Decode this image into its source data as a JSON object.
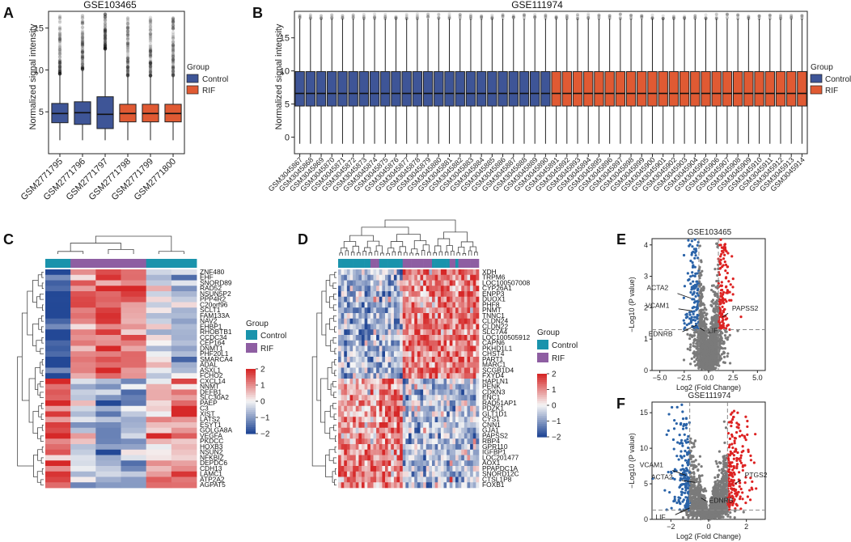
{
  "chart_data": [
    {
      "panel": "A",
      "type": "box",
      "title": "GSE103465",
      "ylabel": "Normalized signal intensity",
      "ylim": [
        0,
        17
      ],
      "yticks": [
        5,
        10,
        15
      ],
      "legend": {
        "title": "Group",
        "items": [
          {
            "name": "Control",
            "color": "#3e5597"
          },
          {
            "name": "RIF",
            "color": "#e05a33"
          }
        ]
      },
      "categories": [
        "GSM2771795",
        "GSM2771796",
        "GSM2771797",
        "GSM2771798",
        "GSM2771799",
        "GSM2771800"
      ],
      "groups": [
        "Control",
        "Control",
        "Control",
        "RIF",
        "RIF",
        "RIF"
      ],
      "boxes": [
        {
          "min": 1.6,
          "q1": 3.7,
          "median": 4.8,
          "q3": 6.0,
          "max": 9.5,
          "outlier_max": 16.5
        },
        {
          "min": 1.6,
          "q1": 3.5,
          "median": 4.9,
          "q3": 6.2,
          "max": 10.0,
          "outlier_max": 16.6
        },
        {
          "min": 1.6,
          "q1": 3.0,
          "median": 4.7,
          "q3": 6.8,
          "max": 12.5,
          "outlier_max": 16.7
        },
        {
          "min": 1.6,
          "q1": 3.8,
          "median": 4.8,
          "q3": 5.9,
          "max": 9.3,
          "outlier_max": 16.3
        },
        {
          "min": 1.6,
          "q1": 3.8,
          "median": 4.8,
          "q3": 5.9,
          "max": 9.3,
          "outlier_max": 16.3
        },
        {
          "min": 1.6,
          "q1": 3.8,
          "median": 4.8,
          "q3": 5.9,
          "max": 9.3,
          "outlier_max": 16.3
        }
      ]
    },
    {
      "panel": "B",
      "type": "box",
      "title": "GSE111974",
      "ylabel": "Normalized signal intensity",
      "ylim": [
        -2.5,
        19
      ],
      "yticks": [
        0,
        5,
        10,
        15
      ],
      "legend": {
        "title": "Group",
        "items": [
          {
            "name": "Control",
            "color": "#3e5597"
          },
          {
            "name": "RIF",
            "color": "#e05a33"
          }
        ]
      },
      "categories": [
        "GSM3045867",
        "GSM3045868",
        "GSM3045869",
        "GSM3045870",
        "GSM3045871",
        "GSM3045872",
        "GSM3045873",
        "GSM3045874",
        "GSM3045875",
        "GSM3045876",
        "GSM3045877",
        "GSM3045878",
        "GSM3045879",
        "GSM3045880",
        "GSM3045881",
        "GSM3045882",
        "GSM3045883",
        "GSM3045884",
        "GSM3045885",
        "GSM3045886",
        "GSM3045887",
        "GSM3045888",
        "GSM3045889",
        "GSM3045890",
        "GSM3045891",
        "GSM3045892",
        "GSM3045893",
        "GSM3045894",
        "GSM3045895",
        "GSM3045896",
        "GSM3045897",
        "GSM3045898",
        "GSM3045899",
        "GSM3045900",
        "GSM3045901",
        "GSM3045902",
        "GSM3045903",
        "GSM3045904",
        "GSM3045905",
        "GSM3045906",
        "GSM3045907",
        "GSM3045908",
        "GSM3045909",
        "GSM3045910",
        "GSM3045911",
        "GSM3045912",
        "GSM3045913",
        "GSM3045914"
      ],
      "control_count": 24,
      "box": {
        "min": -1.0,
        "q1": 4.7,
        "median": 6.6,
        "q3": 9.9,
        "max": 17.9,
        "outlier_max": 18.6
      }
    },
    {
      "panel": "C",
      "type": "heatmap",
      "legend": {
        "title": "Group",
        "items": [
          {
            "name": "Control",
            "color": "#1a93ac"
          },
          {
            "name": "RIF",
            "color": "#8e5ea2"
          }
        ]
      },
      "scale": {
        "ticks": [
          "2",
          "1",
          "0",
          "−1",
          "−2"
        ],
        "min": -2,
        "max": 2
      },
      "column_groups": [
        "Control",
        "RIF",
        "RIF",
        "RIF",
        "Control",
        "Control"
      ],
      "genes": [
        "ZNF480",
        "EHF",
        "SNORD89",
        "RAD52",
        "NSUN5P2",
        "PPP4R2",
        "C20orf96",
        "SCLT1",
        "FAM133A",
        "NAV2",
        "EHBP1",
        "RHOBTB1",
        "CCDC34",
        "CEP164",
        "DNMT1",
        "PHF20L1",
        "SMARCA4",
        "ADAL",
        "ASXL1",
        "FCHO2",
        "CXCL14",
        "NNMT",
        "DEFB1",
        "SLC30A2",
        "PAEP",
        "C3",
        "XIST",
        "LATS2",
        "ESYT1",
        "GOLGA8A",
        "VEGFA",
        "PKDCC",
        "HOXB3",
        "NSUN2",
        "NFKBIZ",
        "DEPDC6",
        "CDH13",
        "LAMC1",
        "ATP2A2",
        "AGPAT5"
      ]
    },
    {
      "panel": "D",
      "type": "heatmap",
      "legend": {
        "title": "Group",
        "items": [
          {
            "name": "Control",
            "color": "#1a93ac"
          },
          {
            "name": "RIF",
            "color": "#8e5ea2"
          }
        ]
      },
      "scale": {
        "ticks": [
          "2",
          "1",
          "0",
          "−1",
          "−2"
        ],
        "min": -2,
        "max": 2
      },
      "genes": [
        "XDH",
        "TRPM6",
        "LOC100507008",
        "CYP26A1",
        "ENPP3",
        "DUOX1",
        "PHF8",
        "PNMT",
        "TNNC1",
        "CLDN24",
        "CLDN22",
        "SLC7A4",
        "LOC100505912",
        "CAPN6",
        "PKHD1L1",
        "CHST4",
        "PART1",
        "MARC1",
        "SCGB1D4",
        "FXYD4",
        "HAPLN1",
        "PENK",
        "CDKN3",
        "ENC1",
        "RAD51AP1",
        "PDZK1",
        "GLT1D1",
        "CYS1",
        "CNN1",
        "GJA1",
        "PAPSS2",
        "RBP4",
        "GPR110",
        "IGFBP1",
        "LOC201477",
        "AOX1",
        "PPAPDC1A",
        "SNORD12C",
        "CTSL1P8",
        "FOXB1"
      ]
    },
    {
      "panel": "E",
      "type": "scatter",
      "title": "GSE103465",
      "xlabel": "Log2 (Fold Change)",
      "ylabel": "−Log10 (P value)",
      "xlim": [
        -5.8,
        5.8
      ],
      "ylim": [
        0,
        4.2
      ],
      "xticks": [
        -5.0,
        -2.5,
        0.0,
        2.5,
        5.0
      ],
      "xtick_labels": [
        "−5.0",
        "−2.5",
        "0.0",
        "2.5",
        "5.0"
      ],
      "yticks": [
        0,
        1,
        2,
        3,
        4
      ],
      "fc_cutoff": 1.0,
      "p_cutoff_log": 1.3,
      "labels": [
        {
          "gene": "ACTA2",
          "x": -1.8,
          "y": 2.3
        },
        {
          "gene": "VCAM1",
          "x": -1.7,
          "y": 1.9
        },
        {
          "gene": "PAPSS2",
          "x": 1.4,
          "y": 1.7
        },
        {
          "gene": "LIF",
          "x": -0.9,
          "y": 1.35
        },
        {
          "gene": "EDNRB",
          "x": -1.2,
          "y": 1.45
        }
      ]
    },
    {
      "panel": "F",
      "type": "scatter",
      "title": "GSE111974",
      "xlabel": "Log2 (Fold Change)",
      "ylabel": "−Log10 (P value)",
      "xlim": [
        -3.0,
        3.0
      ],
      "ylim": [
        0,
        16.5
      ],
      "xticks": [
        -2,
        0,
        2
      ],
      "xtick_labels": [
        "−2",
        "0",
        "2"
      ],
      "yticks": [
        0,
        5,
        10,
        15
      ],
      "fc_cutoff": 1.0,
      "p_cutoff_log": 1.3,
      "labels": [
        {
          "gene": "VCAM1",
          "x": -1.2,
          "y": 6.2
        },
        {
          "gene": "ACTA2",
          "x": -0.7,
          "y": 5.2
        },
        {
          "gene": "PTGS2",
          "x": 1.4,
          "y": 5.0
        },
        {
          "gene": "EDNRB",
          "x": -0.4,
          "y": 3.0
        },
        {
          "gene": "LIF",
          "x": -1.0,
          "y": 1.6
        }
      ]
    }
  ],
  "panel_labels": {
    "a": "A",
    "b": "B",
    "c": "C",
    "d": "D",
    "e": "E",
    "f": "F"
  }
}
